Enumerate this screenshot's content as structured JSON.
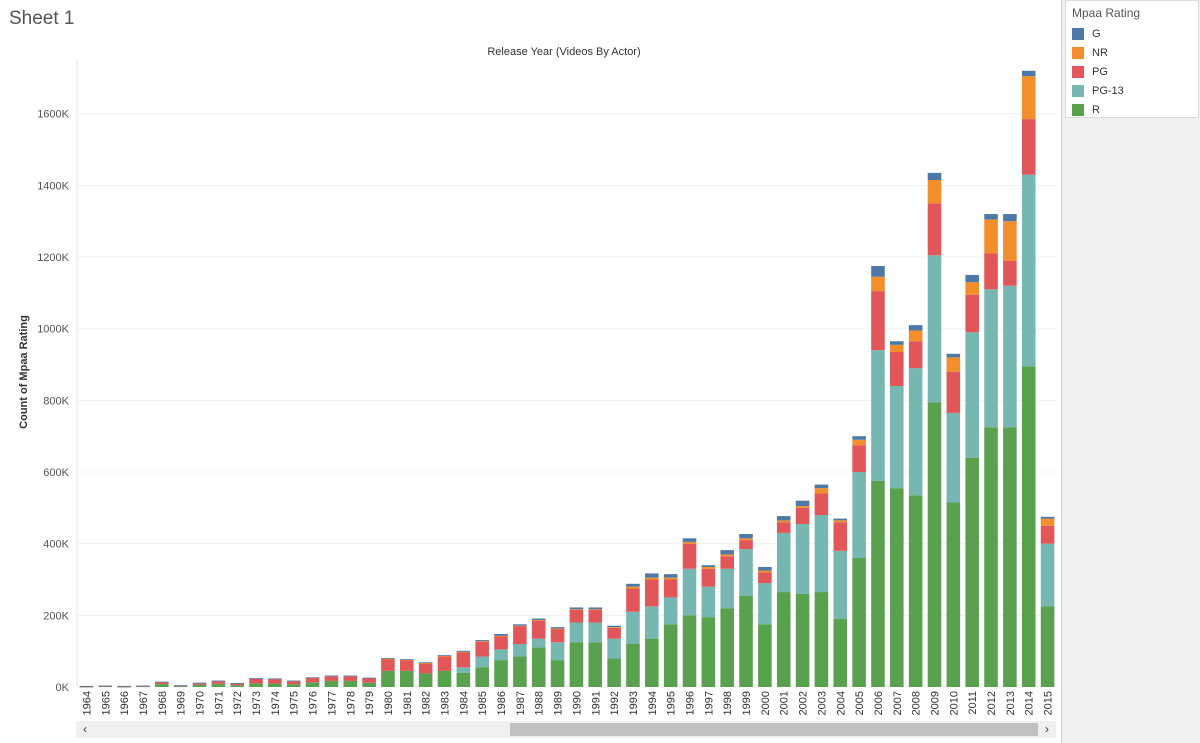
{
  "sheet": {
    "title": "Sheet 1"
  },
  "legend": {
    "title": "Mpaa Rating",
    "items": [
      {
        "label": "G",
        "color": "#4e79a7"
      },
      {
        "label": "NR",
        "color": "#f28e2b"
      },
      {
        "label": "PG",
        "color": "#e15759"
      },
      {
        "label": "PG-13",
        "color": "#76b7b2"
      },
      {
        "label": "R",
        "color": "#59a14f"
      }
    ]
  },
  "scrollbar": {
    "left_icon": "chevron-left-icon",
    "right_icon": "chevron-right-icon"
  },
  "chart_data": {
    "type": "bar",
    "stacked": true,
    "title": "Release Year (Videos By Actor)",
    "xlabel": "",
    "ylabel": "Count of Mpaa Rating",
    "ylim": [
      0,
      1750000
    ],
    "yticks": [
      0,
      200000,
      400000,
      600000,
      800000,
      1000000,
      1200000,
      1400000,
      1600000
    ],
    "ytick_labels": [
      "0K",
      "200K",
      "400K",
      "600K",
      "800K",
      "1000K",
      "1200K",
      "1400K",
      "1600K"
    ],
    "grid": true,
    "legend_position": "right",
    "categories": [
      "1964",
      "1965",
      "1966",
      "1967",
      "1968",
      "1969",
      "1970",
      "1971",
      "1972",
      "1973",
      "1974",
      "1975",
      "1976",
      "1977",
      "1978",
      "1979",
      "1980",
      "1981",
      "1982",
      "1983",
      "1984",
      "1985",
      "1986",
      "1987",
      "1988",
      "1989",
      "1990",
      "1991",
      "1992",
      "1993",
      "1994",
      "1995",
      "1996",
      "1997",
      "1998",
      "1999",
      "2000",
      "2001",
      "2002",
      "2003",
      "2004",
      "2005",
      "2006",
      "2007",
      "2008",
      "2009",
      "2010",
      "2011",
      "2012",
      "2013",
      "2014",
      "2015"
    ],
    "series": [
      {
        "name": "R",
        "color": "#59a14f",
        "values": [
          1000,
          2000,
          1000,
          2000,
          8000,
          2000,
          6000,
          9000,
          5000,
          10000,
          10000,
          8000,
          13000,
          17000,
          17000,
          12000,
          45000,
          45000,
          38000,
          45000,
          40000,
          55000,
          75000,
          85000,
          110000,
          75000,
          125000,
          125000,
          80000,
          120000,
          135000,
          175000,
          200000,
          195000,
          220000,
          255000,
          175000,
          265000,
          260000,
          265000,
          190000,
          360000,
          575000,
          555000,
          535000,
          795000,
          515000,
          640000,
          725000,
          725000,
          895000,
          225000
        ]
      },
      {
        "name": "PG-13",
        "color": "#76b7b2",
        "values": [
          0,
          0,
          0,
          0,
          0,
          0,
          0,
          0,
          0,
          0,
          0,
          0,
          0,
          0,
          0,
          0,
          0,
          0,
          0,
          0,
          15000,
          30000,
          30000,
          35000,
          25000,
          50000,
          55000,
          55000,
          55000,
          90000,
          90000,
          75000,
          130000,
          85000,
          110000,
          130000,
          115000,
          165000,
          195000,
          215000,
          190000,
          240000,
          365000,
          285000,
          355000,
          410000,
          250000,
          350000,
          385000,
          395000,
          535000,
          175000
        ]
      },
      {
        "name": "PG",
        "color": "#e15759",
        "values": [
          1000,
          1000,
          1000,
          1000,
          5000,
          2000,
          4000,
          7000,
          5000,
          13000,
          12000,
          8000,
          12000,
          13000,
          13000,
          12000,
          32000,
          30000,
          28000,
          40000,
          42000,
          42000,
          37000,
          50000,
          50000,
          37000,
          35000,
          35000,
          30000,
          65000,
          75000,
          50000,
          70000,
          50000,
          35000,
          25000,
          30000,
          30000,
          45000,
          60000,
          80000,
          75000,
          165000,
          95000,
          75000,
          145000,
          115000,
          105000,
          100000,
          70000,
          155000,
          50000
        ]
      },
      {
        "name": "NR",
        "color": "#f28e2b",
        "values": [
          0,
          0,
          0,
          0,
          0,
          0,
          0,
          0,
          0,
          0,
          0,
          0,
          0,
          0,
          0,
          0,
          2000,
          1000,
          1000,
          2000,
          1000,
          1000,
          1000,
          1000,
          2000,
          1000,
          2000,
          2000,
          2000,
          5000,
          5000,
          5000,
          5000,
          5000,
          5000,
          5000,
          5000,
          5000,
          5000,
          15000,
          5000,
          15000,
          40000,
          20000,
          30000,
          65000,
          40000,
          35000,
          95000,
          110000,
          120000,
          20000
        ]
      },
      {
        "name": "G",
        "color": "#4e79a7",
        "values": [
          1000,
          1000,
          1000,
          1000,
          2000,
          1000,
          2000,
          2000,
          1000,
          2000,
          2000,
          2000,
          2000,
          2000,
          2000,
          2000,
          2000,
          2000,
          2000,
          2000,
          3000,
          3000,
          5000,
          4000,
          4000,
          4000,
          5000,
          5000,
          4000,
          8000,
          12000,
          10000,
          10000,
          5000,
          12000,
          12000,
          10000,
          12000,
          15000,
          10000,
          5000,
          10000,
          30000,
          10000,
          15000,
          20000,
          10000,
          20000,
          15000,
          20000,
          15000,
          5000
        ]
      }
    ]
  }
}
